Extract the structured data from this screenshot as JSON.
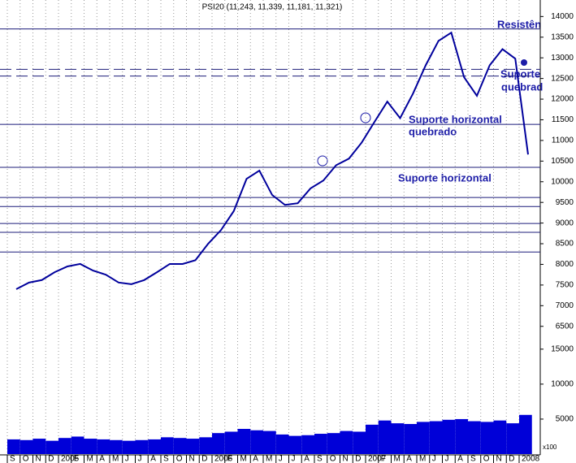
{
  "chart_data": [
    {
      "type": "line",
      "title": "PSI20 (11,243, 11,339, 11,181, 11,321)",
      "categories": [
        "S",
        "O",
        "N",
        "D",
        "2005",
        "F",
        "M",
        "A",
        "M",
        "J",
        "J",
        "A",
        "S",
        "O",
        "N",
        "D",
        "2006",
        "F",
        "M",
        "A",
        "M",
        "J",
        "J",
        "A",
        "S",
        "O",
        "N",
        "D",
        "2007",
        "F",
        "M",
        "A",
        "M",
        "J",
        "J",
        "A",
        "S",
        "O",
        "N",
        "D",
        "2008"
      ],
      "values": [
        7400,
        7560,
        7620,
        7810,
        7950,
        8010,
        7850,
        7750,
        7560,
        7520,
        7620,
        7810,
        8010,
        8010,
        8100,
        8500,
        8830,
        9290,
        10070,
        10270,
        9680,
        9440,
        9480,
        9840,
        10030,
        10400,
        10560,
        10950,
        11450,
        11940,
        11540,
        12130,
        12820,
        13410,
        13610,
        12530,
        12080,
        12820,
        13210,
        12980,
        10660
      ],
      "color": "#00009c",
      "ylim": [
        6200,
        14400
      ],
      "yticks": [
        6500,
        7000,
        7500,
        8000,
        8500,
        9000,
        9500,
        10000,
        10500,
        11000,
        11500,
        12000,
        12500,
        13000,
        13500,
        14000
      ],
      "levels": [
        13700,
        11390,
        10350,
        9620,
        9400,
        8990,
        8775,
        8300
      ],
      "dashed_levels": [
        12720,
        12560
      ],
      "annotations": [
        "Resistên",
        "Suporte",
        "quebrad",
        "Suporte horizontal",
        "quebrado",
        "Suporte horizontal"
      ]
    },
    {
      "type": "bar",
      "values": [
        2100,
        2000,
        2200,
        1900,
        2300,
        2500,
        2200,
        2100,
        2000,
        1900,
        2000,
        2100,
        2400,
        2300,
        2200,
        2400,
        3000,
        3200,
        3600,
        3400,
        3300,
        2800,
        2600,
        2700,
        2900,
        3000,
        3300,
        3200,
        4200,
        4800,
        4400,
        4300,
        4600,
        4700,
        4900,
        5000,
        4700,
        4600,
        4800,
        4400,
        5600
      ],
      "color": "#0000d8",
      "ylim": [
        0,
        18000
      ],
      "yticks": [
        5000,
        10000,
        15000
      ],
      "axis_note": "x100"
    }
  ]
}
